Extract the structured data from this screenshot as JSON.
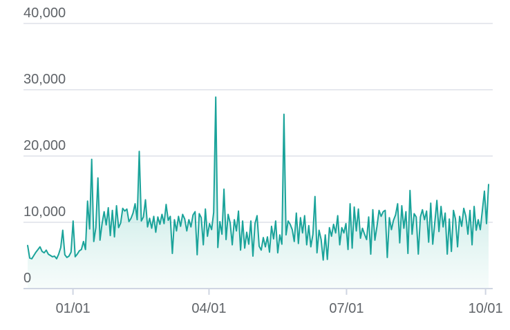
{
  "chart_data": {
    "type": "area",
    "title": "",
    "xlabel": "",
    "ylabel": "",
    "ylim": [
      0,
      40000
    ],
    "grid": true,
    "legend": "none",
    "colors": {
      "line": "#1aa39a",
      "fill_top": "#7fcfc7",
      "fill_bottom": "#f1faf8"
    },
    "y_ticks": [
      {
        "value": 0,
        "label": "0"
      },
      {
        "value": 10000,
        "label": "10,000"
      },
      {
        "value": 20000,
        "label": "20,000"
      },
      {
        "value": 30000,
        "label": "30,000"
      },
      {
        "value": 40000,
        "label": "40,000"
      }
    ],
    "x_ticks": [
      {
        "label": "01/01",
        "day_index": 30
      },
      {
        "label": "04/01",
        "day_index": 120
      },
      {
        "label": "07/01",
        "day_index": 211
      },
      {
        "label": "10/01",
        "day_index": 303
      }
    ],
    "x_range_days": [
      0,
      305
    ],
    "series": [
      {
        "values": [
          6500,
          4600,
          4500,
          5000,
          5500,
          5900,
          6300,
          5600,
          5400,
          5800,
          5200,
          5000,
          4800,
          4900,
          4500,
          5200,
          6200,
          8800,
          5100,
          4700,
          4900,
          5500,
          10200,
          4800,
          5200,
          5700,
          5900,
          7100,
          5900,
          13200,
          9000,
          19500,
          7100,
          9200,
          16700,
          7300,
          9800,
          11600,
          9600,
          12200,
          8000,
          11800,
          7800,
          12500,
          9200,
          9900,
          12100,
          11700,
          12000,
          10100,
          10600,
          11400,
          12800,
          10400,
          20700,
          10200,
          10800,
          13400,
          9300,
          10600,
          9100,
          10900,
          8500,
          10800,
          9700,
          11200,
          9800,
          12700,
          10300,
          10900,
          5300,
          10400,
          8700,
          10900,
          9400,
          11200,
          10500,
          8700,
          10400,
          9300,
          11100,
          11600,
          5100,
          11300,
          10700,
          6600,
          12000,
          7900,
          9800,
          8900,
          11500,
          28900,
          6200,
          10100,
          8200,
          15000,
          7400,
          11200,
          9900,
          6600,
          10400,
          8700,
          11700,
          5800,
          10200,
          6100,
          8500,
          6700,
          10200,
          4900,
          9800,
          11000,
          6400,
          5800,
          7700,
          6300,
          7800,
          5500,
          9400,
          7500,
          10200,
          5400,
          8100,
          6700,
          26300,
          8100,
          10200,
          9700,
          8900,
          7100,
          11400,
          6800,
          10700,
          8400,
          11000,
          6600,
          9500,
          6300,
          8200,
          13900,
          5400,
          8800,
          7400,
          4300,
          8100,
          4400,
          9200,
          7900,
          9700,
          8400,
          11000,
          6600,
          9200,
          8400,
          9800,
          5900,
          12800,
          6100,
          12300,
          8700,
          12000,
          7600,
          9100,
          8200,
          7400,
          10800,
          5200,
          11900,
          7300,
          9400,
          11800,
          10900,
          11600,
          11800,
          4700,
          10700,
          8900,
          10300,
          11100,
          12800,
          6900,
          12500,
          9100,
          11600,
          5300,
          14800,
          8200,
          11300,
          10800,
          5200,
          10800,
          11900,
          10400,
          11700,
          7000,
          12900,
          6700,
          10000,
          13300,
          8600,
          12400,
          9300,
          11400,
          5200,
          10500,
          5600,
          11800,
          10500,
          6300,
          10900,
          9400,
          12100,
          10900,
          8200,
          11800,
          6600,
          12400,
          8800,
          10400,
          8900,
          11800,
          14700,
          9800,
          15700
        ]
      }
    ]
  }
}
